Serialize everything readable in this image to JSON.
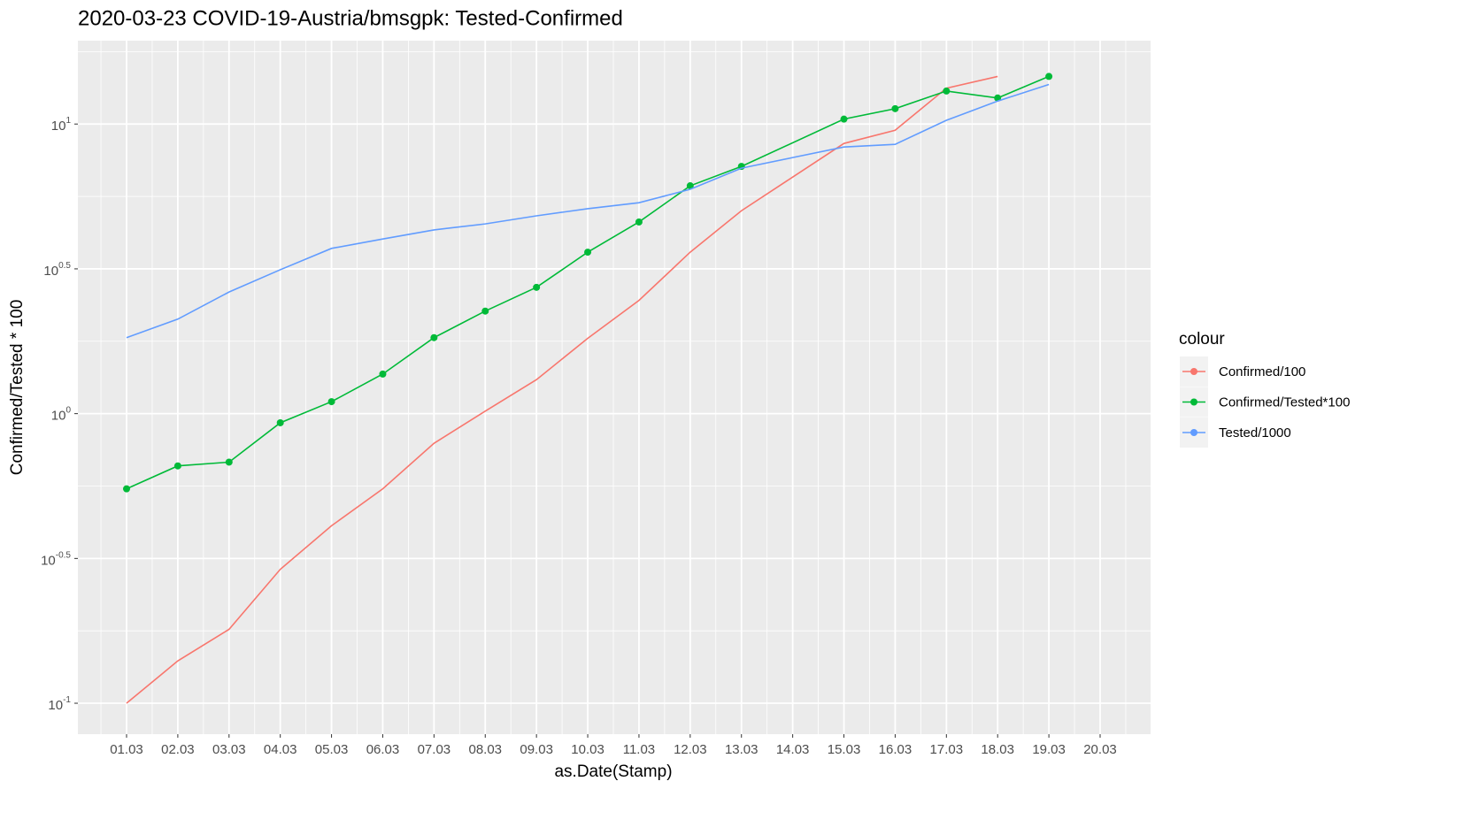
{
  "chart_data": {
    "type": "line",
    "title": "2020-03-23 COVID-19-Austria/bmsgpk: Tested-Confirmed",
    "x_label": "as.Date(Stamp)",
    "y_label": "Confirmed/Tested * 100",
    "legend_title": "colour",
    "legend_position": "right",
    "log_y": true,
    "grid": true,
    "categories": [
      "01.03",
      "02.03",
      "03.03",
      "04.03",
      "05.03",
      "06.03",
      "07.03",
      "08.03",
      "09.03",
      "10.03",
      "11.03",
      "12.03",
      "13.03",
      "14.03",
      "15.03",
      "16.03",
      "17.03",
      "18.03",
      "19.03",
      "20.03"
    ],
    "ylim": [
      0.0782,
      19.4
    ],
    "yticks": [
      {
        "value": 0.1,
        "label": "10^-1"
      },
      {
        "value": 0.3162,
        "label": "10^-0.5"
      },
      {
        "value": 1,
        "label": "10^0"
      },
      {
        "value": 3.162,
        "label": "10^0.5"
      },
      {
        "value": 10,
        "label": "10^1"
      }
    ],
    "series": [
      {
        "name": "Confirmed/100",
        "color": "#F8766D",
        "markers": false,
        "x": [
          "01.03",
          "02.03",
          "03.03",
          "04.03",
          "05.03",
          "06.03",
          "07.03",
          "08.03",
          "09.03",
          "10.03",
          "11.03",
          "12.03",
          "13.03",
          "14.03",
          "15.03",
          "16.03",
          "17.03",
          "18.03"
        ],
        "values": [
          0.1,
          0.14,
          0.18,
          0.29,
          0.41,
          0.55,
          0.79,
          1.02,
          1.31,
          1.82,
          2.46,
          3.61,
          5.02,
          6.56,
          8.57,
          9.52,
          13.3,
          14.6
        ]
      },
      {
        "name": "Confirmed/Tested*100",
        "color": "#00BA38",
        "markers": true,
        "x": [
          "01.03",
          "02.03",
          "03.03",
          "04.03",
          "05.03",
          "06.03",
          "07.03",
          "08.03",
          "09.03",
          "10.03",
          "11.03",
          "12.03",
          "13.03",
          "15.03",
          "16.03",
          "17.03",
          "18.03",
          "19.03"
        ],
        "values": [
          0.55,
          0.66,
          0.68,
          0.93,
          1.1,
          1.37,
          1.83,
          2.26,
          2.73,
          3.61,
          4.59,
          6.12,
          7.14,
          10.4,
          11.3,
          13.0,
          12.3,
          14.6
        ]
      },
      {
        "name": "Tested/1000",
        "color": "#619CFF",
        "markers": false,
        "x": [
          "01.03",
          "02.03",
          "03.03",
          "04.03",
          "05.03",
          "06.03",
          "07.03",
          "08.03",
          "09.03",
          "10.03",
          "11.03",
          "12.03",
          "13.03",
          "14.03",
          "15.03",
          "16.03",
          "17.03",
          "18.03",
          "19.03"
        ],
        "values": [
          1.83,
          2.12,
          2.63,
          3.14,
          3.72,
          4.01,
          4.31,
          4.52,
          4.82,
          5.1,
          5.35,
          5.95,
          7.04,
          7.66,
          8.33,
          8.51,
          10.3,
          12.0,
          13.7
        ]
      }
    ]
  }
}
